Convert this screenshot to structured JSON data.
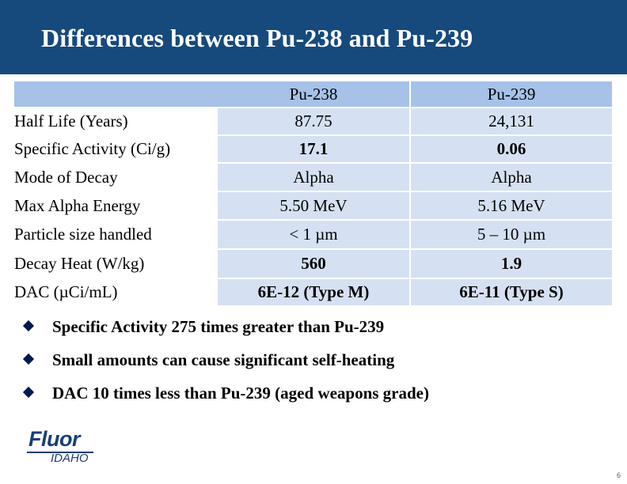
{
  "slide": {
    "title": "Differences between Pu-238 and Pu-239",
    "page_number": "6",
    "colors": {
      "title_bar": "#174a7c",
      "row_dark": "#a6c2e8",
      "row_light": "#d5e1f2"
    }
  },
  "table": {
    "headers": [
      "",
      "Pu-238",
      "Pu-239"
    ],
    "rows": [
      {
        "label": "Half Life (Years)",
        "pu238": "87.75",
        "pu239": "24,131"
      },
      {
        "label": "Specific Activity (Ci/g)",
        "pu238": "17.1",
        "pu239": "0.06"
      },
      {
        "label": "Mode of Decay",
        "pu238": "Alpha",
        "pu239": "Alpha"
      },
      {
        "label": "Max Alpha Energy",
        "pu238": "5.50 MeV",
        "pu239": "5.16 MeV"
      },
      {
        "label": "Particle size handled",
        "pu238": "< 1 µm",
        "pu239": "5 – 10 µm"
      },
      {
        "label": "Decay Heat (W/kg)",
        "pu238": "560",
        "pu239": "1.9"
      },
      {
        "label": "DAC (µCi/mL)",
        "pu238": "6E-12 (Type M)",
        "pu239": "6E-11 (Type S)"
      }
    ]
  },
  "bullets": [
    "Specific Activity 275 times greater than Pu-239",
    "Small amounts can cause significant self-heating",
    "DAC 10 times less than Pu-239 (aged weapons grade)"
  ],
  "logo": {
    "name": "Fluor",
    "subtitle": "IDAHO",
    "icon": "fluor-idaho-logo"
  }
}
